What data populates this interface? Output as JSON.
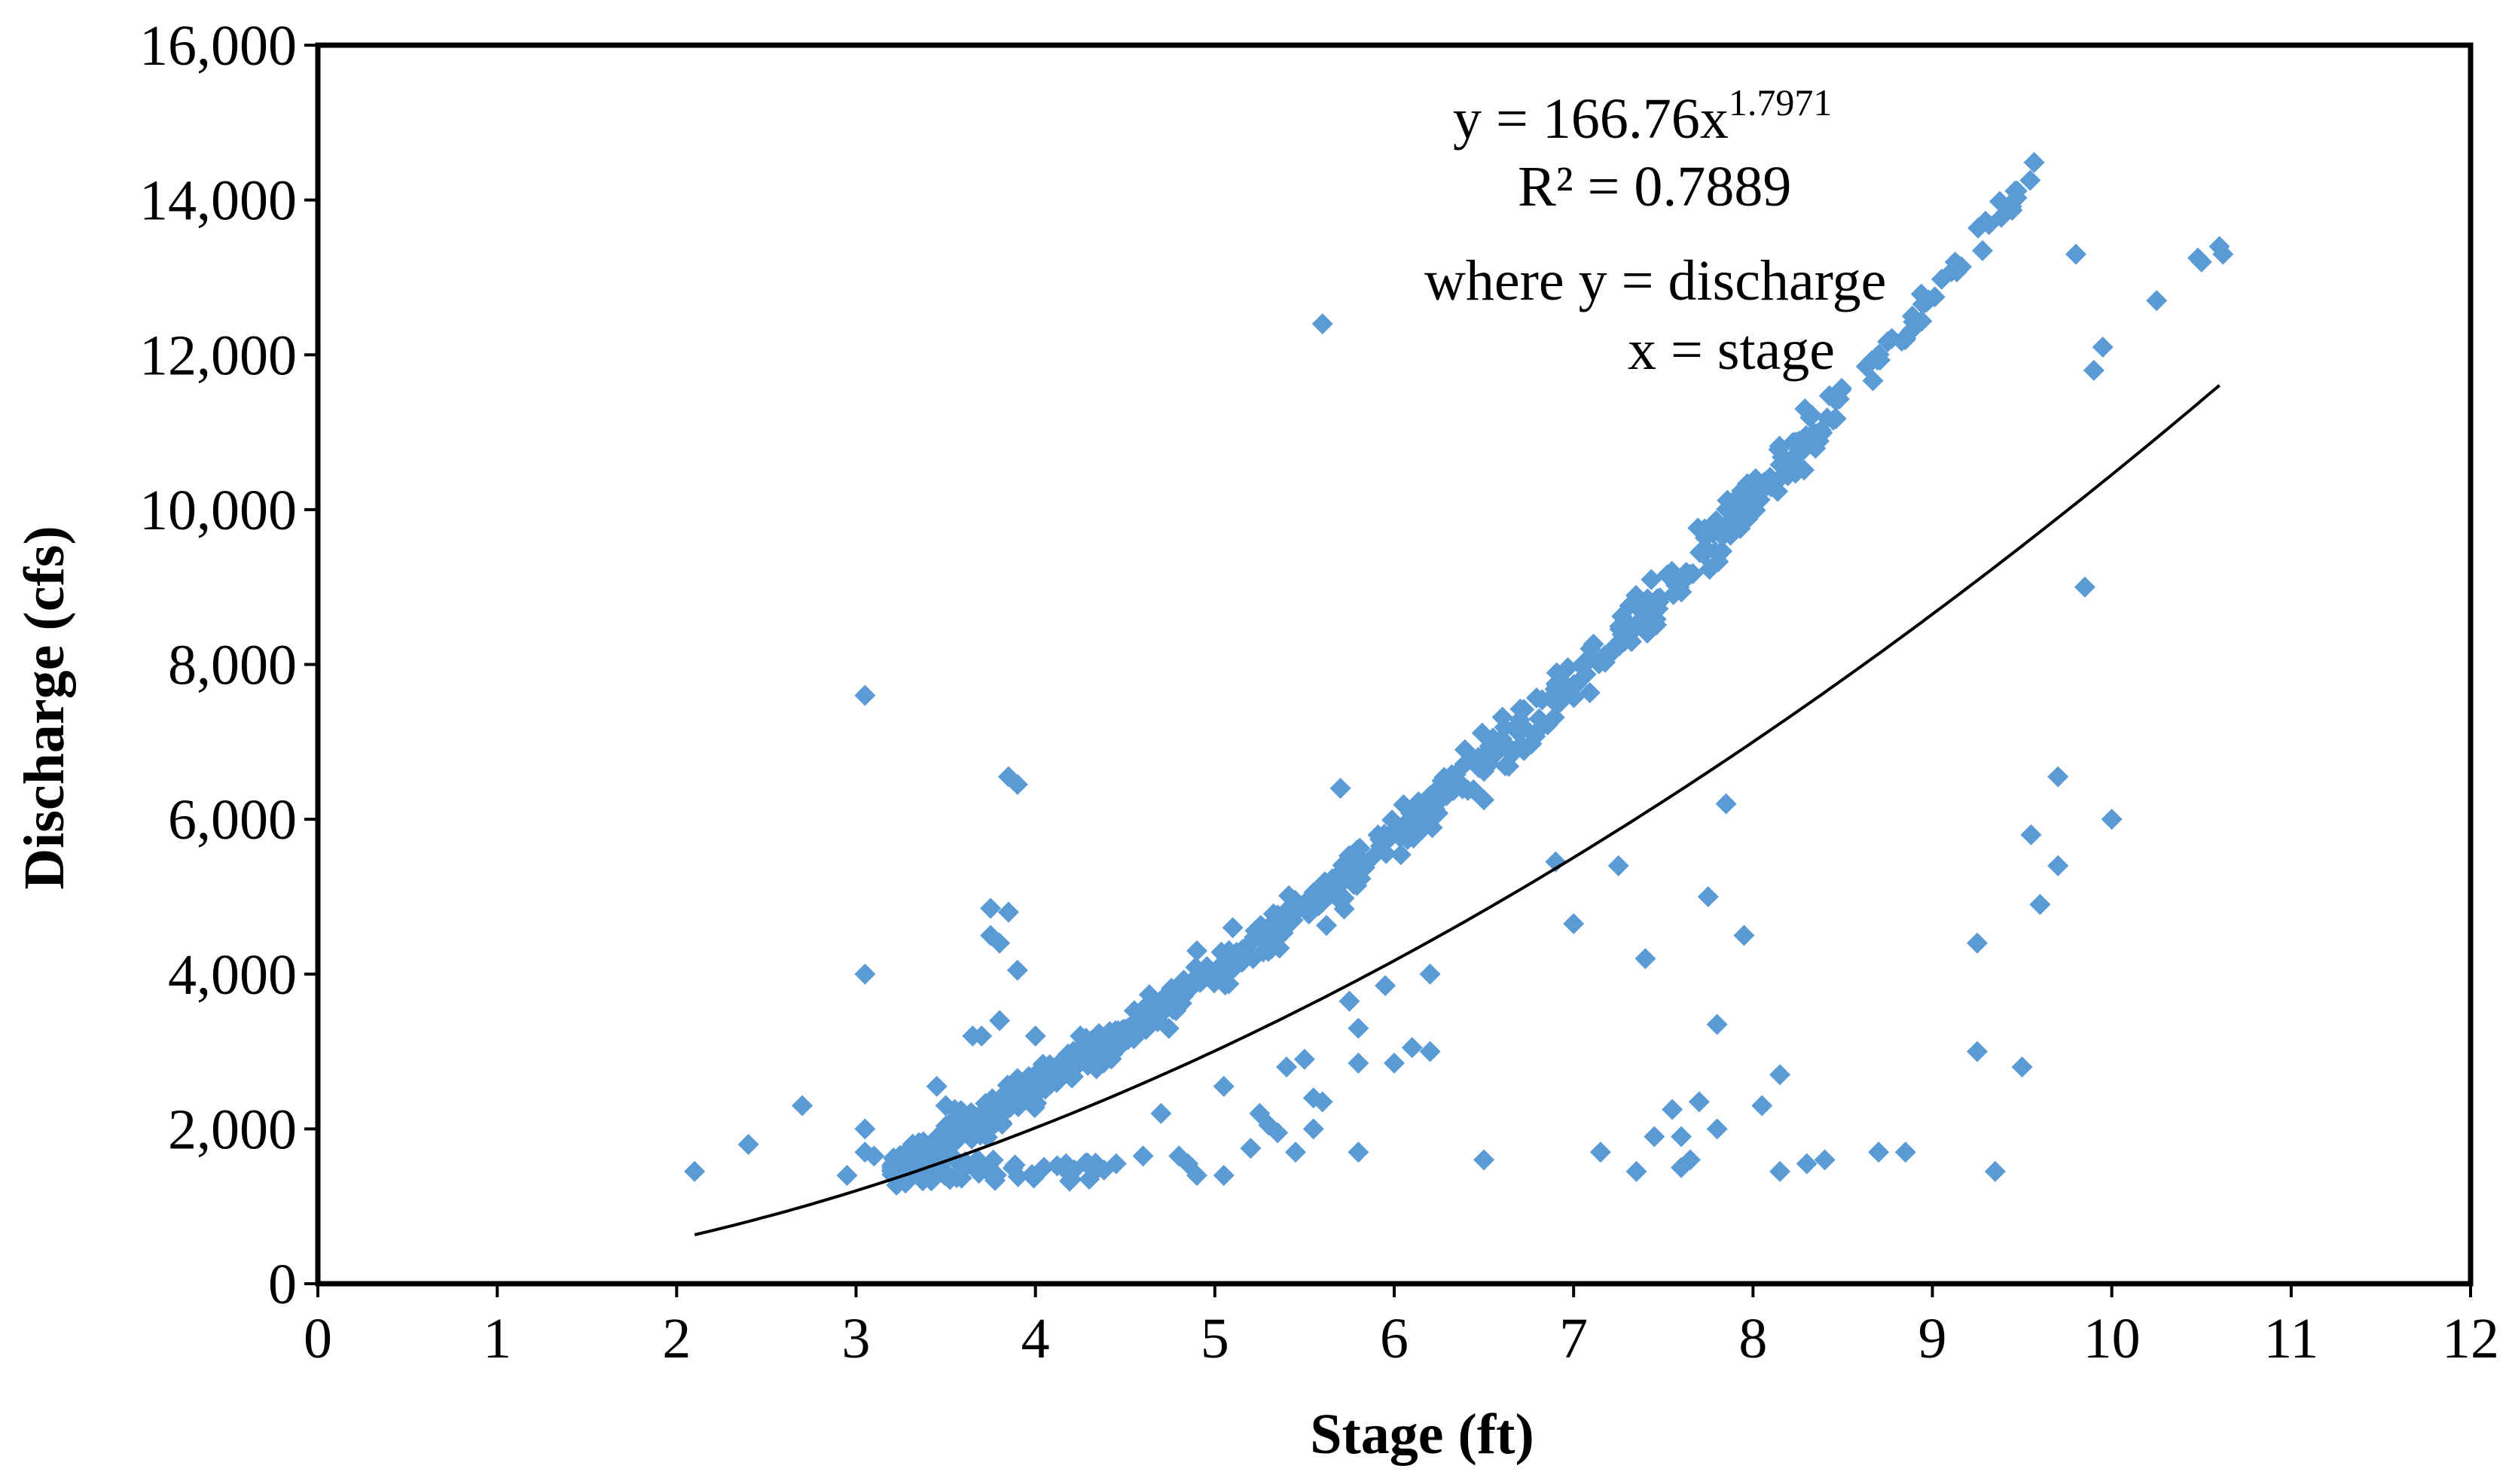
{
  "chart_data": {
    "type": "scatter",
    "title": "",
    "xlabel": "Stage (ft)",
    "ylabel": "Discharge (cfs)",
    "xlim": [
      0,
      12
    ],
    "ylim": [
      0,
      16000
    ],
    "xticks": [
      0,
      1,
      2,
      3,
      4,
      5,
      6,
      7,
      8,
      9,
      10,
      11,
      12
    ],
    "yticks": [
      0,
      2000,
      4000,
      6000,
      8000,
      10000,
      12000,
      14000,
      16000
    ],
    "ytick_labels": [
      "0",
      "2,000",
      "4,000",
      "6,000",
      "8,000",
      "10,000",
      "12,000",
      "14,000",
      "16,000"
    ],
    "grid": false,
    "marker_color": "#5B9BD5",
    "trendline_color": "#000000",
    "trendline": {
      "type": "power",
      "a": 166.76,
      "b": 1.7971,
      "x_range": [
        2.1,
        10.6
      ]
    },
    "annotations": {
      "equation_main": "y = 166.76x",
      "equation_exponent": "1.7971",
      "r_squared": "R² = 0.7889",
      "where_line1": "where y = discharge",
      "where_line2": "x = stage"
    },
    "outliers": [
      [
        2.1,
        1450
      ],
      [
        2.4,
        1800
      ],
      [
        2.7,
        2300
      ],
      [
        2.95,
        1400
      ],
      [
        3.05,
        7600
      ],
      [
        3.05,
        4000
      ],
      [
        3.05,
        2000
      ],
      [
        3.05,
        1700
      ],
      [
        3.1,
        1650
      ],
      [
        3.45,
        2550
      ],
      [
        3.5,
        2300
      ],
      [
        3.55,
        2250
      ],
      [
        3.65,
        3200
      ],
      [
        3.7,
        3200
      ],
      [
        3.75,
        4500
      ],
      [
        3.75,
        4850
      ],
      [
        3.8,
        4400
      ],
      [
        3.8,
        3400
      ],
      [
        3.85,
        6550
      ],
      [
        3.85,
        4800
      ],
      [
        3.9,
        6450
      ],
      [
        3.9,
        4050
      ],
      [
        3.9,
        2650
      ],
      [
        4.0,
        3200
      ],
      [
        4.25,
        3200
      ],
      [
        4.2,
        1350
      ],
      [
        4.3,
        1350
      ],
      [
        4.45,
        1550
      ],
      [
        4.6,
        1650
      ],
      [
        4.7,
        2200
      ],
      [
        4.8,
        1650
      ],
      [
        4.85,
        1550
      ],
      [
        4.9,
        1400
      ],
      [
        4.9,
        4300
      ],
      [
        5.05,
        1400
      ],
      [
        5.05,
        2550
      ],
      [
        5.1,
        4600
      ],
      [
        5.2,
        1750
      ],
      [
        5.25,
        2200
      ],
      [
        5.3,
        2050
      ],
      [
        5.35,
        1950
      ],
      [
        5.4,
        2800
      ],
      [
        5.45,
        1700
      ],
      [
        5.5,
        2900
      ],
      [
        5.55,
        2000
      ],
      [
        5.55,
        2400
      ],
      [
        5.6,
        12400
      ],
      [
        5.6,
        2350
      ],
      [
        5.7,
        6400
      ],
      [
        5.75,
        3650
      ],
      [
        5.8,
        3300
      ],
      [
        5.8,
        2850
      ],
      [
        5.8,
        1700
      ],
      [
        5.95,
        3850
      ],
      [
        6.0,
        2850
      ],
      [
        6.1,
        3050
      ],
      [
        6.2,
        4000
      ],
      [
        6.2,
        3000
      ],
      [
        6.5,
        6250
      ],
      [
        6.5,
        1600
      ],
      [
        6.9,
        5450
      ],
      [
        7.0,
        4650
      ],
      [
        7.15,
        1700
      ],
      [
        7.25,
        5400
      ],
      [
        7.35,
        1450
      ],
      [
        7.4,
        4200
      ],
      [
        7.45,
        1900
      ],
      [
        7.55,
        2250
      ],
      [
        7.6,
        1500
      ],
      [
        7.6,
        1900
      ],
      [
        7.65,
        1600
      ],
      [
        7.7,
        2350
      ],
      [
        7.75,
        5000
      ],
      [
        7.8,
        3350
      ],
      [
        7.8,
        2000
      ],
      [
        7.85,
        6200
      ],
      [
        7.95,
        4500
      ],
      [
        8.05,
        2300
      ],
      [
        8.15,
        2700
      ],
      [
        8.15,
        1450
      ],
      [
        8.3,
        1550
      ],
      [
        8.4,
        1600
      ],
      [
        8.7,
        1700
      ],
      [
        8.85,
        1700
      ],
      [
        9.25,
        4400
      ],
      [
        9.25,
        3000
      ],
      [
        9.35,
        1450
      ],
      [
        9.5,
        2800
      ],
      [
        9.55,
        5800
      ],
      [
        9.6,
        4900
      ],
      [
        9.7,
        5400
      ],
      [
        9.7,
        6550
      ],
      [
        9.8,
        13300
      ],
      [
        9.85,
        9000
      ],
      [
        9.9,
        11800
      ],
      [
        9.95,
        12100
      ],
      [
        10.0,
        6000
      ],
      [
        10.25,
        12700
      ],
      [
        10.5,
        13200
      ],
      [
        10.6,
        13400
      ],
      [
        10.62,
        13300
      ],
      [
        10.48,
        13250
      ]
    ]
  }
}
